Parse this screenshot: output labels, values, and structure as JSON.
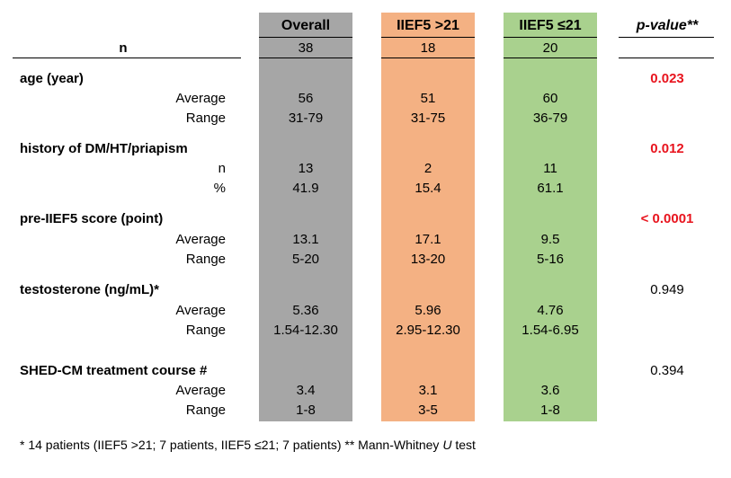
{
  "colors": {
    "overall": "#a6a6a6",
    "high": "#f4b183",
    "low": "#a9d18e",
    "significant": "#e8141e"
  },
  "header": {
    "overall": "Overall",
    "high": "IIEF5 >21",
    "low": "IIEF5 ≤21",
    "pvalue": "p-value**"
  },
  "n_row": {
    "label": "n",
    "overall": "38",
    "high": "18",
    "low": "20"
  },
  "rows": [
    {
      "label": "age (year)",
      "kind": "section",
      "p": "0.023",
      "sig": true
    },
    {
      "label": "Average",
      "kind": "sub",
      "overall": "56",
      "high": "51",
      "low": "60"
    },
    {
      "label": "Range",
      "kind": "sub",
      "overall": "31-79",
      "high": "31-75",
      "low": "36-79"
    },
    {
      "label": "history of DM/HT/priapism",
      "kind": "section",
      "p": "0.012",
      "sig": true
    },
    {
      "label": "n",
      "kind": "sub",
      "overall": "13",
      "high": "2",
      "low": "11"
    },
    {
      "label": "%",
      "kind": "sub",
      "overall": "41.9",
      "high": "15.4",
      "low": "61.1"
    },
    {
      "label": "pre-IIEF5 score (point)",
      "kind": "section",
      "p": "< 0.0001",
      "sig": true
    },
    {
      "label": "Average",
      "kind": "sub",
      "overall": "13.1",
      "high": "17.1",
      "low": "9.5"
    },
    {
      "label": "Range",
      "kind": "sub",
      "overall": "5-20",
      "high": "13-20",
      "low": "5-16"
    },
    {
      "label": "testosterone (ng/mL)*",
      "kind": "section",
      "p": "0.949",
      "sig": false
    },
    {
      "label": "Average",
      "kind": "sub",
      "overall": "5.36",
      "high": "5.96",
      "low": "4.76"
    },
    {
      "label": "Range",
      "kind": "sub",
      "overall": "1.54-12.30",
      "high": "2.95-12.30",
      "low": "1.54-6.95"
    },
    {
      "label": "SHED-CM treatment course #",
      "kind": "section",
      "p": "0.394",
      "sig": false
    },
    {
      "label": "Average",
      "kind": "sub",
      "overall": "3.4",
      "high": "3.1",
      "low": "3.6"
    },
    {
      "label": "Range",
      "kind": "sub",
      "overall": "1-8",
      "high": "3-5",
      "low": "1-8"
    }
  ],
  "footnote": {
    "part1": "* 14 patients (IIEF5 >21; 7 patients, IIEF5 ≤21; 7 patients)  ** Mann-Whitney ",
    "part2": "U",
    "part3": " test"
  }
}
